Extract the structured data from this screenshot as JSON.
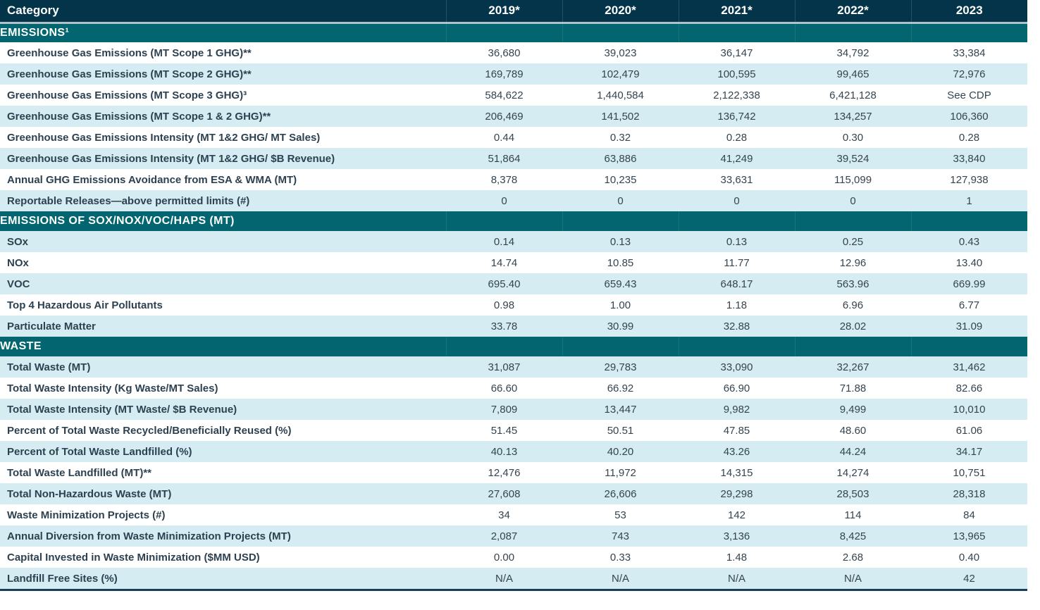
{
  "colors": {
    "header_background": "#03344a",
    "section_background": "#02656f",
    "header_separator": "#b0c2c7",
    "shaded_row_background": "#d6ecf3",
    "label_text": "#2e4150",
    "value_text": "#35444f",
    "bottom_rule": "#16405a"
  },
  "table": {
    "header": {
      "category_label": "Category",
      "years": [
        "2019*",
        "2020*",
        "2021*",
        "2022*",
        "2023"
      ]
    },
    "sections": [
      {
        "title": "EMISSIONS¹",
        "rows": [
          {
            "label": "Greenhouse Gas Emissions (MT Scope 1 GHG)**",
            "values": [
              "36,680",
              "39,023",
              "36,147",
              "34,792",
              "33,384"
            ]
          },
          {
            "label": "Greenhouse Gas Emissions (MT Scope 2 GHG)**",
            "values": [
              "169,789",
              "102,479",
              "100,595",
              "99,465",
              "72,976"
            ]
          },
          {
            "label": "Greenhouse Gas Emissions (MT Scope 3 GHG)³",
            "values": [
              "584,622",
              "1,440,584",
              "2,122,338",
              "6,421,128",
              "See CDP"
            ]
          },
          {
            "label": "Greenhouse Gas Emissions (MT Scope 1 & 2 GHG)**",
            "values": [
              "206,469",
              "141,502",
              "136,742",
              "134,257",
              "106,360"
            ]
          },
          {
            "label": "Greenhouse Gas Emissions Intensity (MT 1&2 GHG/ MT Sales)",
            "values": [
              "0.44",
              "0.32",
              "0.28",
              "0.30",
              "0.28"
            ]
          },
          {
            "label": "Greenhouse Gas Emissions Intensity (MT 1&2 GHG/ $B Revenue)",
            "values": [
              "51,864",
              "63,886",
              "41,249",
              "39,524",
              "33,840"
            ]
          },
          {
            "label": "Annual GHG Emissions Avoidance from ESA & WMA (MT)",
            "values": [
              "8,378",
              "10,235",
              "33,631",
              "115,099",
              "127,938"
            ]
          },
          {
            "label": "Reportable Releases—above permitted limits (#)",
            "values": [
              "0",
              "0",
              "0",
              "0",
              "1"
            ]
          }
        ]
      },
      {
        "title": "EMISSIONS OF SOX/NOX/VOC/HAPS (MT)",
        "rows": [
          {
            "label": "SOx",
            "values": [
              "0.14",
              "0.13",
              "0.13",
              "0.25",
              "0.43"
            ]
          },
          {
            "label": "NOx",
            "values": [
              "14.74",
              "10.85",
              "11.77",
              "12.96",
              "13.40"
            ]
          },
          {
            "label": "VOC",
            "values": [
              "695.40",
              "659.43",
              "648.17",
              "563.96",
              "669.99"
            ]
          },
          {
            "label": "Top 4 Hazardous Air Pollutants",
            "values": [
              "0.98",
              "1.00",
              "1.18",
              "6.96",
              "6.77"
            ]
          },
          {
            "label": "Particulate Matter",
            "values": [
              "33.78",
              "30.99",
              "32.88",
              "28.02",
              "31.09"
            ]
          }
        ]
      },
      {
        "title": "WASTE",
        "rows": [
          {
            "label": "Total Waste (MT)",
            "values": [
              "31,087",
              "29,783",
              "33,090",
              "32,267",
              "31,462"
            ]
          },
          {
            "label": "Total Waste Intensity (Kg Waste/MT Sales)",
            "values": [
              "66.60",
              "66.92",
              "66.90",
              "71.88",
              "82.66"
            ]
          },
          {
            "label": "Total Waste Intensity (MT Waste/ $B Revenue)",
            "values": [
              "7,809",
              "13,447",
              "9,982",
              "9,499",
              "10,010"
            ]
          },
          {
            "label": "Percent of Total Waste Recycled/Beneficially Reused (%)",
            "values": [
              "51.45",
              "50.51",
              "47.85",
              "48.60",
              "61.06"
            ]
          },
          {
            "label": "Percent of Total Waste Landfilled (%)",
            "values": [
              "40.13",
              "40.20",
              "43.26",
              "44.24",
              "34.17"
            ]
          },
          {
            "label": "Total Waste Landfilled (MT)**",
            "values": [
              "12,476",
              "11,972",
              "14,315",
              "14,274",
              "10,751"
            ]
          },
          {
            "label": "Total Non-Hazardous Waste (MT)",
            "values": [
              "27,608",
              "26,606",
              "29,298",
              "28,503",
              "28,318"
            ]
          },
          {
            "label": "Waste Minimization Projects (#)",
            "values": [
              "34",
              "53",
              "142",
              "114",
              "84"
            ]
          },
          {
            "label": "Annual Diversion from Waste Minimization Projects (MT)",
            "values": [
              "2,087",
              "743",
              "3,136",
              "8,425",
              "13,965"
            ]
          },
          {
            "label": "Capital Invested in Waste Minimization ($MM USD)",
            "values": [
              "0.00",
              "0.33",
              "1.48",
              "2.68",
              "0.40"
            ]
          },
          {
            "label": "Landfill Free Sites (%)",
            "values": [
              "N/A",
              "N/A",
              "N/A",
              "N/A",
              "42"
            ]
          }
        ]
      }
    ]
  }
}
